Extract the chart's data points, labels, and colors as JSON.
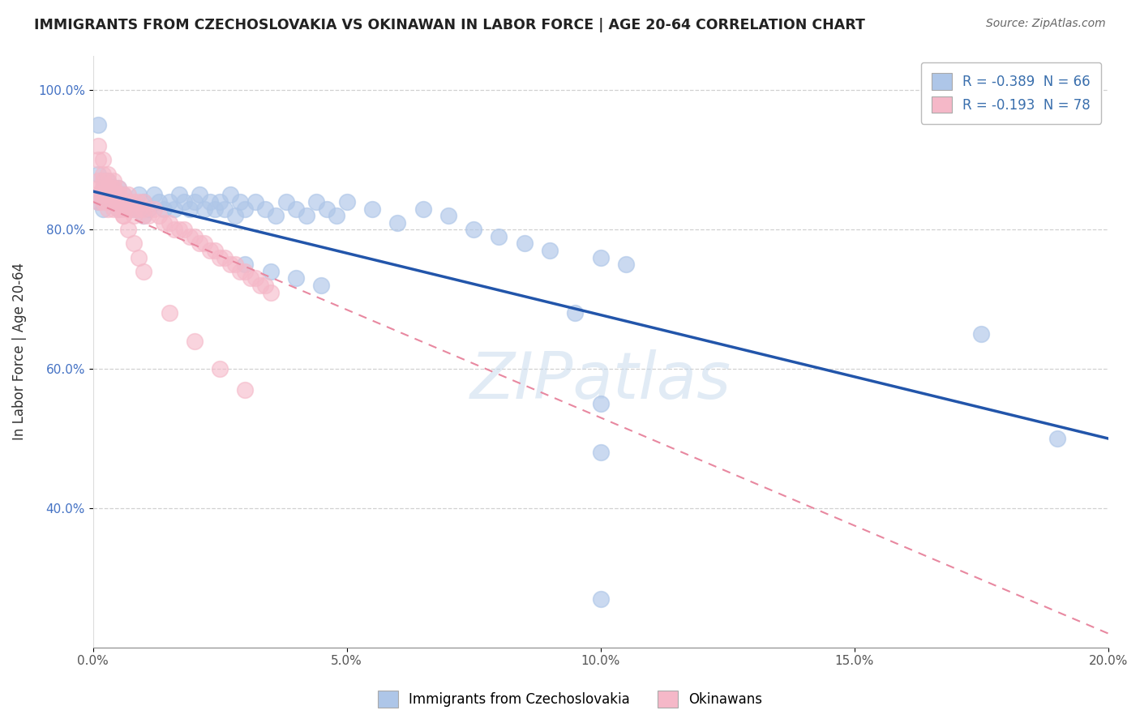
{
  "title": "IMMIGRANTS FROM CZECHOSLOVAKIA VS OKINAWAN IN LABOR FORCE | AGE 20-64 CORRELATION CHART",
  "source": "Source: ZipAtlas.com",
  "ylabel": "In Labor Force | Age 20-64",
  "xlim": [
    0.0,
    0.2
  ],
  "ylim": [
    0.2,
    1.05
  ],
  "xticks": [
    0.0,
    0.05,
    0.1,
    0.15,
    0.2
  ],
  "yticks": [
    0.4,
    0.6,
    0.8,
    1.0
  ],
  "xticklabels": [
    "0.0%",
    "5.0%",
    "10.0%",
    "15.0%",
    "20.0%"
  ],
  "yticklabels": [
    "40.0%",
    "60.0%",
    "80.0%",
    "100.0%"
  ],
  "legend_r1": "R = -0.389  N = 66",
  "legend_r2": "R = -0.193  N = 78",
  "blue_color": "#aec6e8",
  "pink_color": "#f5b8c8",
  "blue_line_color": "#2255aa",
  "pink_line_color": "#e888a0",
  "watermark": "ZIPatlas",
  "grid_color": "#cccccc",
  "blue_line_x0": 0.0,
  "blue_line_y0": 0.855,
  "blue_line_x1": 0.2,
  "blue_line_y1": 0.5,
  "pink_line_x0": 0.0,
  "pink_line_y0": 0.84,
  "pink_line_x1": 0.2,
  "pink_line_y1": 0.22,
  "blue_scatter_x": [
    0.001,
    0.001,
    0.001,
    0.002,
    0.002,
    0.003,
    0.003,
    0.004,
    0.005,
    0.005,
    0.006,
    0.007,
    0.008,
    0.009,
    0.01,
    0.01,
    0.011,
    0.012,
    0.013,
    0.014,
    0.015,
    0.016,
    0.017,
    0.018,
    0.019,
    0.02,
    0.021,
    0.022,
    0.023,
    0.024,
    0.025,
    0.026,
    0.027,
    0.028,
    0.029,
    0.03,
    0.032,
    0.034,
    0.036,
    0.038,
    0.04,
    0.042,
    0.044,
    0.046,
    0.048,
    0.05,
    0.055,
    0.06,
    0.065,
    0.07,
    0.075,
    0.08,
    0.085,
    0.09,
    0.1,
    0.105,
    0.03,
    0.035,
    0.04,
    0.045,
    0.095,
    0.1,
    0.1,
    0.175,
    0.19,
    0.1
  ],
  "blue_scatter_y": [
    0.95,
    0.88,
    0.84,
    0.86,
    0.83,
    0.87,
    0.84,
    0.85,
    0.86,
    0.83,
    0.85,
    0.84,
    0.83,
    0.85,
    0.84,
    0.82,
    0.83,
    0.85,
    0.84,
    0.83,
    0.84,
    0.83,
    0.85,
    0.84,
    0.83,
    0.84,
    0.85,
    0.83,
    0.84,
    0.83,
    0.84,
    0.83,
    0.85,
    0.82,
    0.84,
    0.83,
    0.84,
    0.83,
    0.82,
    0.84,
    0.83,
    0.82,
    0.84,
    0.83,
    0.82,
    0.84,
    0.83,
    0.81,
    0.83,
    0.82,
    0.8,
    0.79,
    0.78,
    0.77,
    0.76,
    0.75,
    0.75,
    0.74,
    0.73,
    0.72,
    0.68,
    0.55,
    0.48,
    0.65,
    0.5,
    0.27
  ],
  "pink_scatter_x": [
    0.001,
    0.001,
    0.001,
    0.001,
    0.001,
    0.002,
    0.002,
    0.002,
    0.002,
    0.002,
    0.003,
    0.003,
    0.003,
    0.003,
    0.003,
    0.004,
    0.004,
    0.004,
    0.004,
    0.004,
    0.005,
    0.005,
    0.005,
    0.005,
    0.006,
    0.006,
    0.006,
    0.006,
    0.007,
    0.007,
    0.007,
    0.008,
    0.008,
    0.008,
    0.009,
    0.009,
    0.01,
    0.01,
    0.01,
    0.011,
    0.012,
    0.013,
    0.014,
    0.015,
    0.016,
    0.017,
    0.018,
    0.019,
    0.02,
    0.021,
    0.022,
    0.023,
    0.024,
    0.025,
    0.026,
    0.027,
    0.028,
    0.029,
    0.03,
    0.031,
    0.032,
    0.033,
    0.034,
    0.035,
    0.001,
    0.002,
    0.003,
    0.004,
    0.005,
    0.006,
    0.007,
    0.008,
    0.009,
    0.01,
    0.015,
    0.02,
    0.025,
    0.03
  ],
  "pink_scatter_y": [
    0.9,
    0.87,
    0.86,
    0.85,
    0.84,
    0.88,
    0.87,
    0.86,
    0.85,
    0.84,
    0.87,
    0.86,
    0.85,
    0.84,
    0.83,
    0.87,
    0.86,
    0.85,
    0.84,
    0.83,
    0.86,
    0.85,
    0.84,
    0.83,
    0.85,
    0.84,
    0.83,
    0.82,
    0.85,
    0.84,
    0.83,
    0.84,
    0.83,
    0.82,
    0.84,
    0.83,
    0.84,
    0.83,
    0.82,
    0.82,
    0.83,
    0.82,
    0.81,
    0.81,
    0.8,
    0.8,
    0.8,
    0.79,
    0.79,
    0.78,
    0.78,
    0.77,
    0.77,
    0.76,
    0.76,
    0.75,
    0.75,
    0.74,
    0.74,
    0.73,
    0.73,
    0.72,
    0.72,
    0.71,
    0.92,
    0.9,
    0.88,
    0.86,
    0.84,
    0.82,
    0.8,
    0.78,
    0.76,
    0.74,
    0.68,
    0.64,
    0.6,
    0.57
  ]
}
